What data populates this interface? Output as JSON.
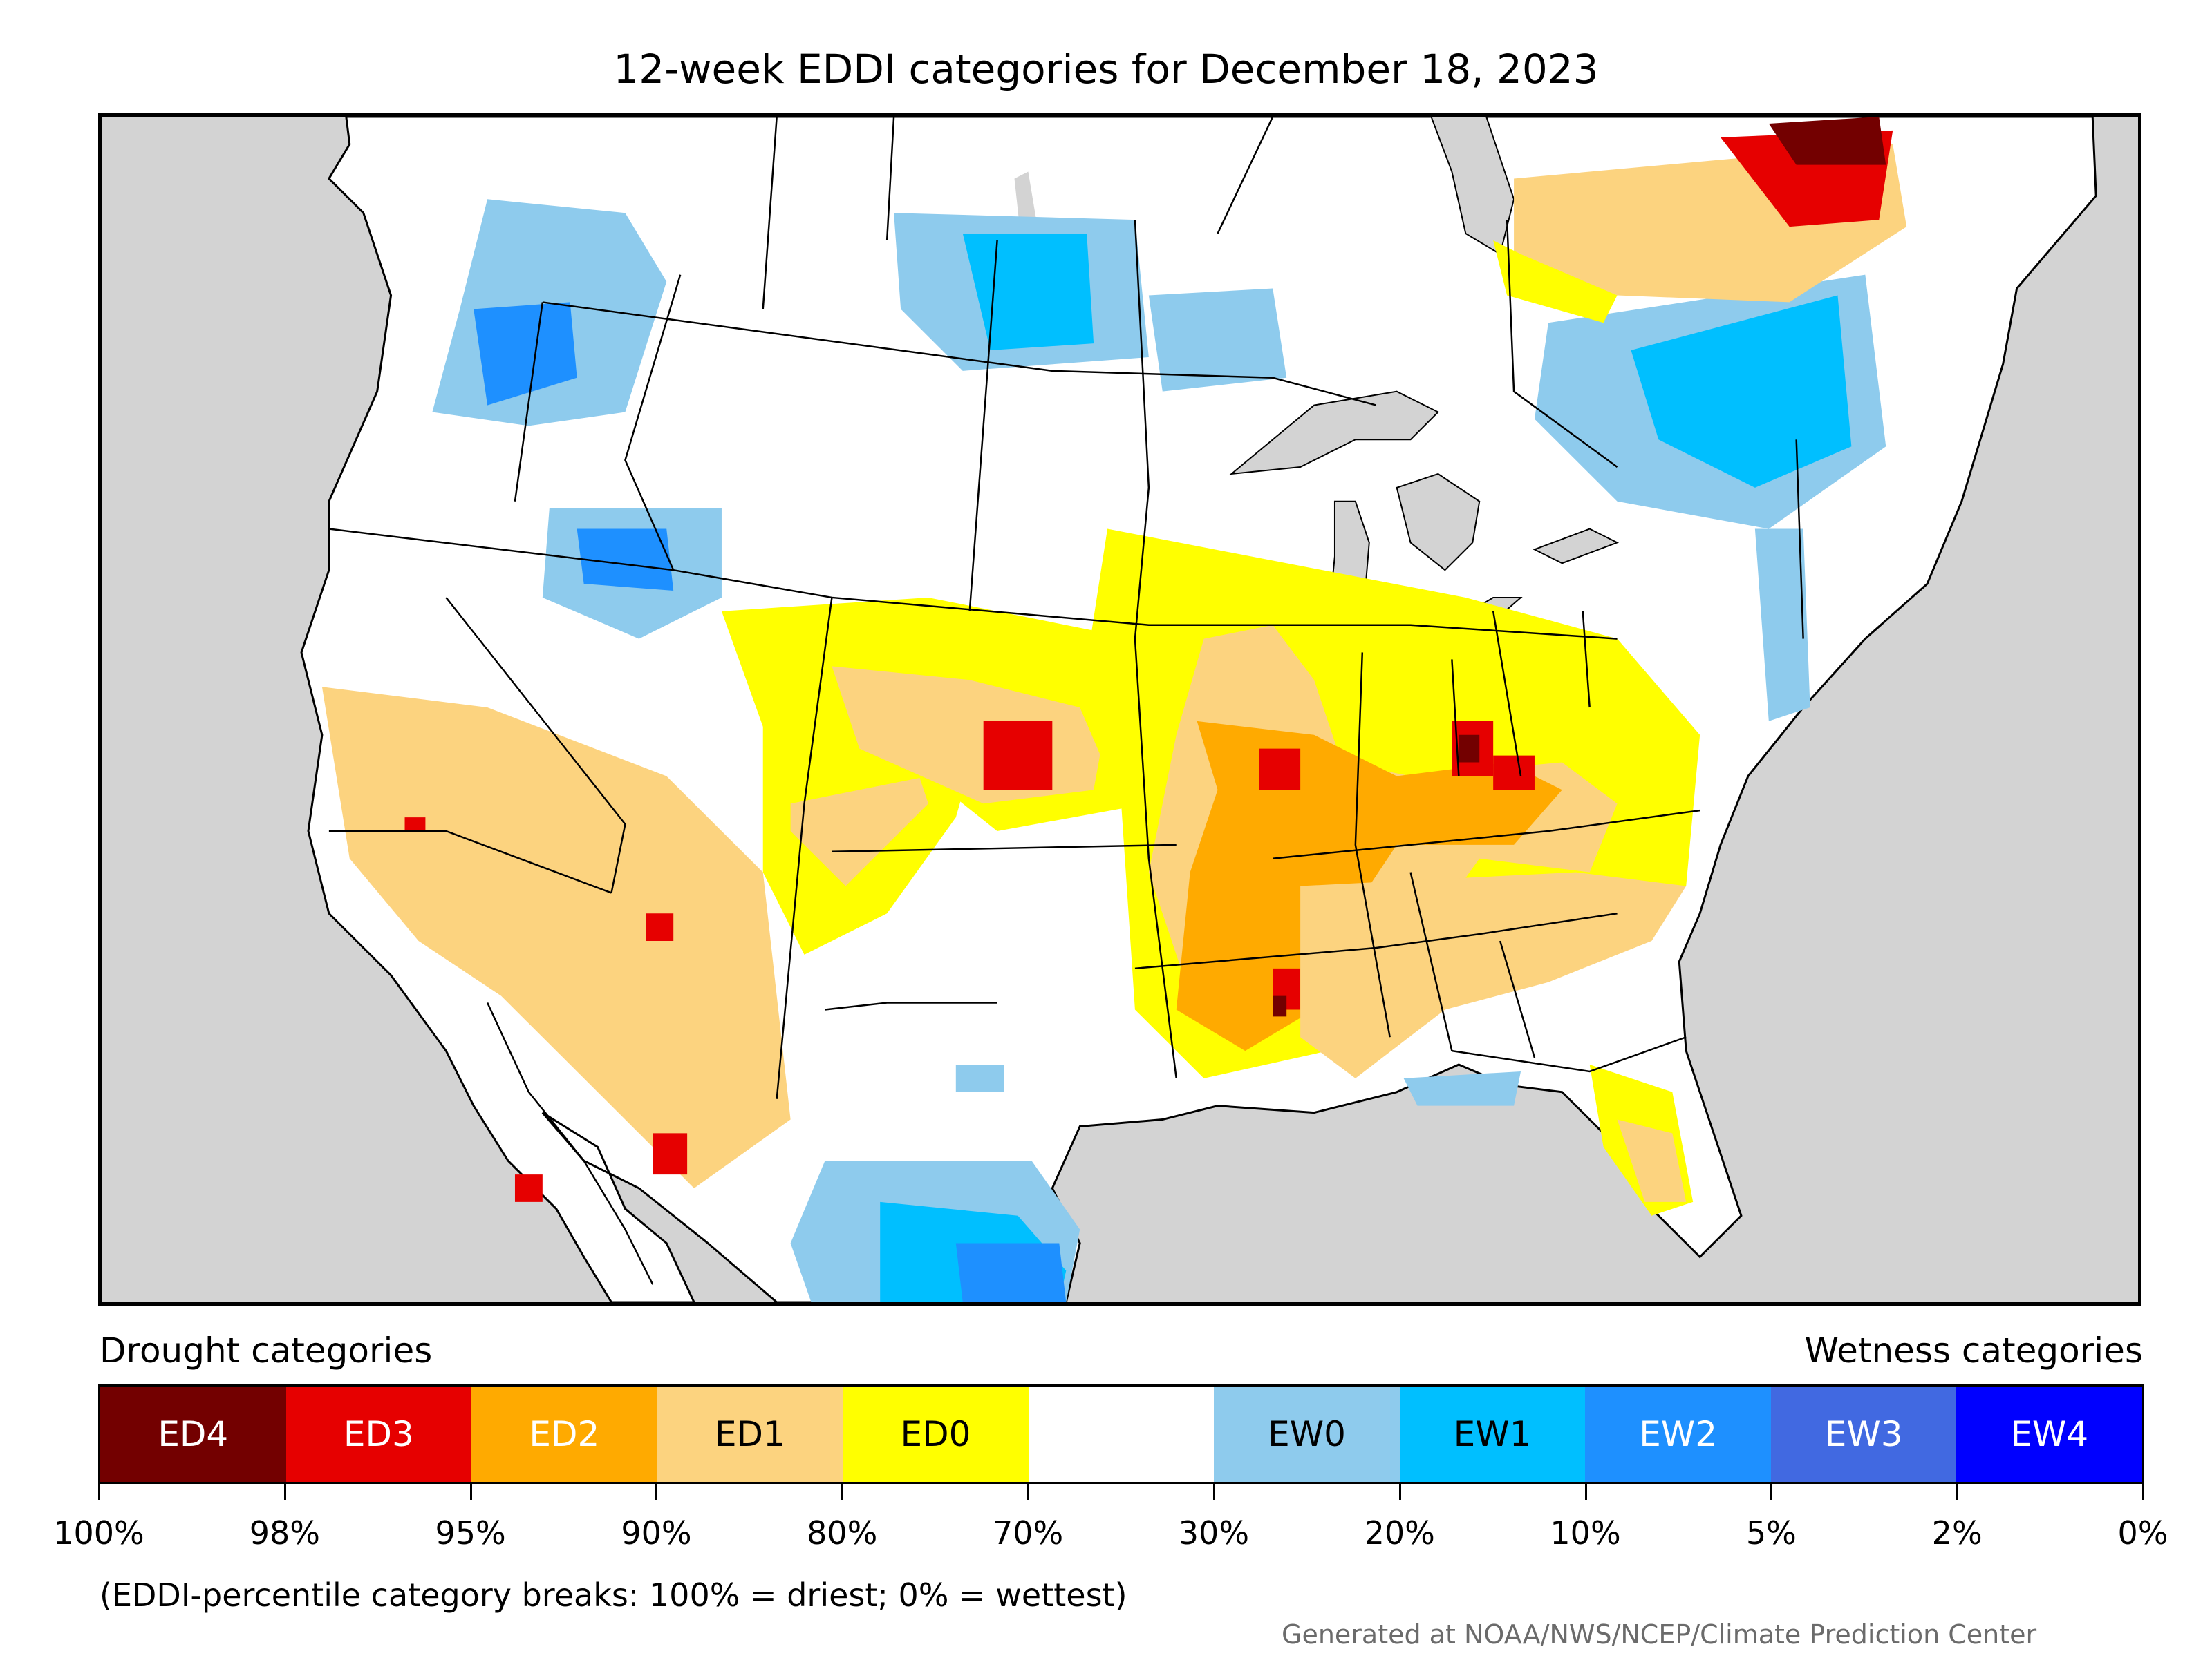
{
  "title": "12-week EDDI categories for December 18, 2023",
  "legend": {
    "drought_heading": "Drought categories",
    "wetness_heading": "Wetness categories",
    "categories": [
      {
        "label": "ED4",
        "color": "#730000",
        "text_color": "#ffffff"
      },
      {
        "label": "ED3",
        "color": "#e60000",
        "text_color": "#ffffff"
      },
      {
        "label": "ED2",
        "color": "#ffaa00",
        "text_color": "#ffffff"
      },
      {
        "label": "ED1",
        "color": "#fcd37f",
        "text_color": "#000000"
      },
      {
        "label": "ED0",
        "color": "#ffff00",
        "text_color": "#000000"
      },
      {
        "label": "",
        "color": "#ffffff",
        "text_color": "#000000"
      },
      {
        "label": "EW0",
        "color": "#8ecbed",
        "text_color": "#000000"
      },
      {
        "label": "EW1",
        "color": "#00bfff",
        "text_color": "#000000"
      },
      {
        "label": "EW2",
        "color": "#1e90ff",
        "text_color": "#ffffff"
      },
      {
        "label": "EW3",
        "color": "#4169e1",
        "text_color": "#ffffff"
      },
      {
        "label": "EW4",
        "color": "#0000ff",
        "text_color": "#ffffff"
      }
    ],
    "breaks": [
      "100%",
      "98%",
      "95%",
      "90%",
      "80%",
      "70%",
      "30%",
      "20%",
      "10%",
      "5%",
      "2%",
      "0%"
    ]
  },
  "footnote": "(EDDI-percentile category breaks: 100% = driest; 0% = wettest)",
  "credit": "Generated at NOAA/NWS/NCEP/Climate Prediction Center",
  "map": {
    "background_color": "#d3d3d3",
    "land_color": "#ffffff",
    "water_color": "#d3d3d3"
  }
}
